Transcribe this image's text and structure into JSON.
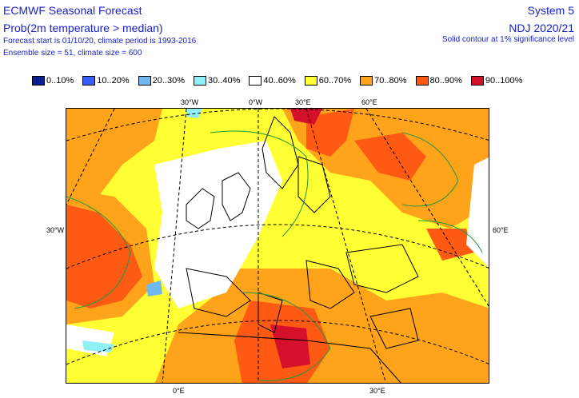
{
  "header": {
    "title": "ECMWF Seasonal Forecast",
    "subtitle": "Prob(2m temperature > median)",
    "forecast_info": "Forecast start is 01/10/20, climate period is 1993-2016",
    "ensemble_info": "Ensemble size = 51, climate size = 600",
    "system": "System 5",
    "period": "NDJ 2020/21",
    "significance": "Solid contour at 1% significance level"
  },
  "legend": [
    {
      "label": "0..10%",
      "color": "#0a1f8f"
    },
    {
      "label": "10..20%",
      "color": "#3560ff"
    },
    {
      "label": "20..30%",
      "color": "#6fb8f0"
    },
    {
      "label": "30..40%",
      "color": "#8ff0f5"
    },
    {
      "label": "40..60%",
      "color": "#ffffff"
    },
    {
      "label": "60..70%",
      "color": "#ffff33"
    },
    {
      "label": "70..80%",
      "color": "#ffa41a"
    },
    {
      "label": "80..90%",
      "color": "#ff5a14"
    },
    {
      "label": "90..100%",
      "color": "#d4102a"
    }
  ],
  "map": {
    "lon_labels": {
      "top_30w": "30°W",
      "top_0": "0°W",
      "top_30e": "30°E",
      "top_60e": "60°E",
      "bottom_0": "0°E",
      "bottom_30e": "30°E"
    },
    "lat_labels": {
      "left": "30°W",
      "right": "60°E"
    }
  }
}
